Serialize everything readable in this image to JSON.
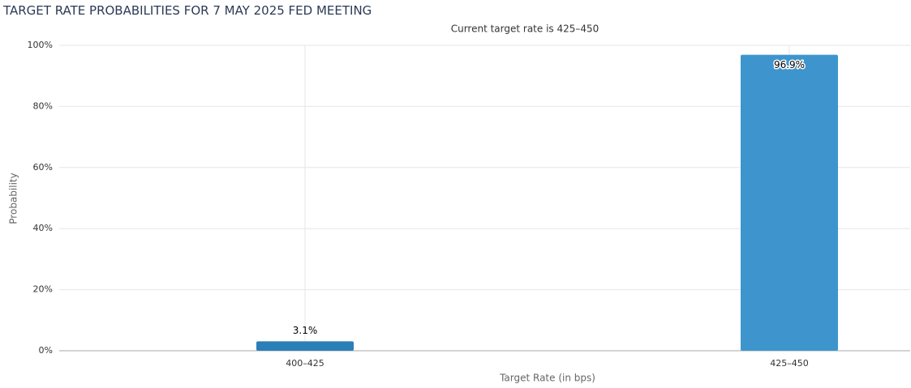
{
  "chart_data": {
    "type": "bar",
    "title": "TARGET RATE PROBABILITIES FOR 7 MAY 2025 FED MEETING",
    "subtitle": "Current target rate is 425–450",
    "y_label": "Probability",
    "x_label": "Target Rate (in bps)",
    "categories": [
      "400–425",
      "425–450"
    ],
    "values": [
      3.1,
      96.9
    ],
    "value_labels": [
      "3.1%",
      "96.9%"
    ],
    "colors": [
      "#2b7fb8",
      "#3e95cd"
    ],
    "ylim": [
      0,
      100
    ],
    "yticks": [
      {
        "value": 0,
        "label": "0%"
      },
      {
        "value": 20,
        "label": "20%"
      },
      {
        "value": 40,
        "label": "40%"
      },
      {
        "value": 60,
        "label": "60%"
      },
      {
        "value": 80,
        "label": "80%"
      },
      {
        "value": 100,
        "label": "100%"
      }
    ],
    "grid": true
  }
}
